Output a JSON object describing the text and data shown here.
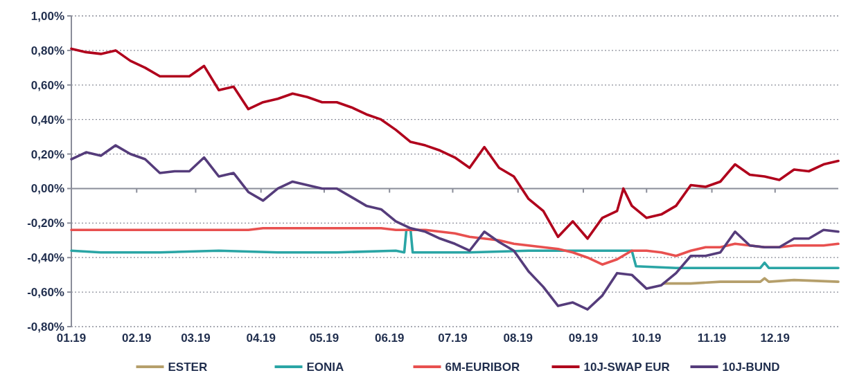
{
  "chart_data": {
    "type": "line",
    "x": [
      "2019-01-01",
      "2019-01-08",
      "2019-01-15",
      "2019-01-22",
      "2019-01-29",
      "2019-02-05",
      "2019-02-12",
      "2019-02-19",
      "2019-02-26",
      "2019-03-05",
      "2019-03-12",
      "2019-03-19",
      "2019-03-26",
      "2019-04-02",
      "2019-04-09",
      "2019-04-16",
      "2019-04-23",
      "2019-04-30",
      "2019-05-07",
      "2019-05-14",
      "2019-05-21",
      "2019-05-28",
      "2019-06-04",
      "2019-06-11",
      "2019-06-18",
      "2019-06-25",
      "2019-07-02",
      "2019-07-09",
      "2019-07-16",
      "2019-07-23",
      "2019-07-30",
      "2019-08-06",
      "2019-08-13",
      "2019-08-20",
      "2019-08-27",
      "2019-09-03",
      "2019-09-10",
      "2019-09-17",
      "2019-09-24",
      "2019-10-01",
      "2019-10-08",
      "2019-10-15",
      "2019-10-22",
      "2019-10-29",
      "2019-11-05",
      "2019-11-12",
      "2019-11-19",
      "2019-11-26",
      "2019-12-03",
      "2019-12-10",
      "2019-12-17",
      "2019-12-24",
      "2019-12-31"
    ],
    "series": [
      {
        "name": "ESTER",
        "color": "#b59f6b",
        "x": [
          "2019-10-09",
          "2019-10-22",
          "2019-11-05",
          "2019-11-24",
          "2019-11-26",
          "2019-11-28",
          "2019-12-10",
          "2019-12-31"
        ],
        "values": [
          -0.55,
          -0.55,
          -0.54,
          -0.54,
          -0.52,
          -0.54,
          -0.53,
          -0.54
        ]
      },
      {
        "name": "EONIA",
        "color": "#2aa5a5",
        "x": [
          "2019-01-01",
          "2019-01-15",
          "2019-02-12",
          "2019-03-12",
          "2019-04-09",
          "2019-05-07",
          "2019-06-04",
          "2019-06-08",
          "2019-06-09",
          "2019-06-11",
          "2019-06-12",
          "2019-07-09",
          "2019-08-06",
          "2019-09-03",
          "2019-09-24",
          "2019-09-26",
          "2019-10-15",
          "2019-11-24",
          "2019-11-26",
          "2019-11-28",
          "2019-12-31"
        ],
        "values": [
          -0.36,
          -0.37,
          -0.37,
          -0.36,
          -0.37,
          -0.37,
          -0.36,
          -0.37,
          -0.24,
          -0.24,
          -0.37,
          -0.37,
          -0.36,
          -0.36,
          -0.36,
          -0.45,
          -0.46,
          -0.46,
          -0.43,
          -0.46,
          -0.46
        ]
      },
      {
        "name": "6M-EURIBOR",
        "color": "#e8504f",
        "values": [
          -0.24,
          -0.24,
          -0.24,
          -0.24,
          -0.24,
          -0.24,
          -0.24,
          -0.24,
          -0.24,
          -0.24,
          -0.24,
          -0.24,
          -0.24,
          -0.23,
          -0.23,
          -0.23,
          -0.23,
          -0.23,
          -0.23,
          -0.23,
          -0.23,
          -0.23,
          -0.24,
          -0.24,
          -0.24,
          -0.25,
          -0.26,
          -0.28,
          -0.29,
          -0.3,
          -0.32,
          -0.33,
          -0.34,
          -0.35,
          -0.37,
          -0.4,
          -0.44,
          -0.41,
          -0.36,
          -0.36,
          -0.37,
          -0.39,
          -0.36,
          -0.34,
          -0.34,
          -0.32,
          -0.33,
          -0.34,
          -0.34,
          -0.33,
          -0.33,
          -0.33,
          -0.32
        ]
      },
      {
        "name": "10J-SWAP EUR",
        "color": "#b0001c",
        "x": [
          "2019-01-01",
          "2019-01-08",
          "2019-01-15",
          "2019-01-22",
          "2019-01-29",
          "2019-02-05",
          "2019-02-12",
          "2019-02-19",
          "2019-02-26",
          "2019-03-05",
          "2019-03-12",
          "2019-03-19",
          "2019-03-26",
          "2019-04-02",
          "2019-04-09",
          "2019-04-16",
          "2019-04-23",
          "2019-04-30",
          "2019-05-07",
          "2019-05-14",
          "2019-05-21",
          "2019-05-28",
          "2019-06-04",
          "2019-06-11",
          "2019-06-18",
          "2019-06-25",
          "2019-07-02",
          "2019-07-09",
          "2019-07-16",
          "2019-07-23",
          "2019-07-30",
          "2019-08-06",
          "2019-08-13",
          "2019-08-20",
          "2019-08-27",
          "2019-09-03",
          "2019-09-10",
          "2019-09-17",
          "2019-09-20",
          "2019-09-24",
          "2019-10-01",
          "2019-10-08",
          "2019-10-15",
          "2019-10-22",
          "2019-10-29",
          "2019-11-05",
          "2019-11-12",
          "2019-11-19",
          "2019-11-26",
          "2019-12-03",
          "2019-12-10",
          "2019-12-17",
          "2019-12-24",
          "2019-12-31"
        ],
        "values": [
          0.81,
          0.79,
          0.78,
          0.8,
          0.74,
          0.7,
          0.65,
          0.65,
          0.65,
          0.71,
          0.57,
          0.59,
          0.46,
          0.5,
          0.52,
          0.55,
          0.53,
          0.5,
          0.5,
          0.47,
          0.43,
          0.4,
          0.34,
          0.27,
          0.25,
          0.22,
          0.18,
          0.12,
          0.24,
          0.12,
          0.07,
          -0.06,
          -0.13,
          -0.28,
          -0.19,
          -0.29,
          -0.17,
          -0.13,
          0.0,
          -0.1,
          -0.17,
          -0.15,
          -0.1,
          0.02,
          0.01,
          0.04,
          0.14,
          0.08,
          0.07,
          0.05,
          0.11,
          0.1,
          0.14,
          0.16
        ]
      },
      {
        "name": "10J-BUND",
        "color": "#553c7b",
        "values": [
          0.17,
          0.21,
          0.19,
          0.25,
          0.2,
          0.17,
          0.09,
          0.1,
          0.1,
          0.18,
          0.07,
          0.09,
          -0.02,
          -0.07,
          0.0,
          0.04,
          0.02,
          0.0,
          0.0,
          -0.05,
          -0.1,
          -0.12,
          -0.19,
          -0.23,
          -0.25,
          -0.29,
          -0.32,
          -0.36,
          -0.25,
          -0.31,
          -0.36,
          -0.48,
          -0.57,
          -0.68,
          -0.66,
          -0.7,
          -0.62,
          -0.49,
          -0.5,
          -0.58,
          -0.56,
          -0.49,
          -0.39,
          -0.39,
          -0.37,
          -0.25,
          -0.33,
          -0.34,
          -0.34,
          -0.29,
          -0.29,
          -0.24,
          -0.25
        ]
      }
    ],
    "xlim": [
      "2019-01-01",
      "2019-12-31"
    ],
    "xticks": [
      {
        "value": "2019-01-01",
        "label": "01.19"
      },
      {
        "value": "2019-02-01",
        "label": "02.19"
      },
      {
        "value": "2019-03-01",
        "label": "03.19"
      },
      {
        "value": "2019-04-01",
        "label": "04.19"
      },
      {
        "value": "2019-05-01",
        "label": "05.19"
      },
      {
        "value": "2019-06-01",
        "label": "06.19"
      },
      {
        "value": "2019-07-01",
        "label": "07.19"
      },
      {
        "value": "2019-08-01",
        "label": "08.19"
      },
      {
        "value": "2019-09-01",
        "label": "09.19"
      },
      {
        "value": "2019-10-01",
        "label": "10.19"
      },
      {
        "value": "2019-11-01",
        "label": "11.19"
      },
      {
        "value": "2019-12-01",
        "label": "12.19"
      }
    ],
    "ylim": [
      -0.8,
      1.0
    ],
    "yticks": [
      {
        "value": -0.8,
        "label": "-0,80%"
      },
      {
        "value": -0.6,
        "label": "-0,60%"
      },
      {
        "value": -0.4,
        "label": "-0,40%"
      },
      {
        "value": -0.2,
        "label": "-0,20%"
      },
      {
        "value": 0,
        "label": "0,00%"
      },
      {
        "value": 0.2,
        "label": "0,20%"
      },
      {
        "value": 0.4,
        "label": "0,40%"
      },
      {
        "value": 0.6,
        "label": "0,60%"
      },
      {
        "value": 0.8,
        "label": "0,80%"
      },
      {
        "value": 1.0,
        "label": "1,00%"
      }
    ],
    "grid": "y",
    "legend": "bottom",
    "line_style": "solid",
    "marker": "none"
  }
}
